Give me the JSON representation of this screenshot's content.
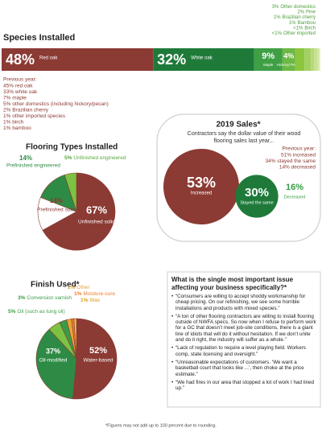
{
  "chart_data": [
    {
      "type": "stacked-bar",
      "title": "Species Installed",
      "categories": [
        "Red oak",
        "White oak",
        "Maple",
        "Hickory/ Pecan",
        "Other domestics",
        "Pine",
        "Brazilian cherry",
        "Bamboo",
        "Birch",
        "Other imported"
      ],
      "values": [
        48,
        32,
        9,
        4,
        3,
        2,
        1,
        1,
        0.5,
        0.5
      ],
      "value_labels": [
        "48%",
        "32%",
        "9%",
        "4%",
        "3%",
        "2%",
        "1%",
        "1%",
        "<1%",
        "<1%"
      ],
      "colors": [
        "#8b3a34",
        "#1f7a3a",
        "#3f9f45",
        "#6cb844",
        "#8cc63f",
        "#a3d063",
        "#b5d97a",
        "#c6e18f",
        "#d2e7a3",
        "#e0efbb"
      ],
      "xlim": [
        0,
        100
      ]
    },
    {
      "type": "pie",
      "title": "Flooring Types Installed",
      "categories": [
        "Unfinished solid",
        "Prefinished solid",
        "Prefinished engineered",
        "Unfinished engineered"
      ],
      "values": [
        67,
        14,
        14,
        5
      ],
      "value_labels": [
        "67%",
        "14%",
        "14%",
        "5%"
      ],
      "colors": [
        "#8b3a34",
        "#ffffff",
        "#2e8b45",
        "#7dc242"
      ]
    },
    {
      "type": "bubble",
      "title": "2019 Sales*",
      "subtitle": "Contractors say the dollar value of their wood flooring sales last year...",
      "categories": [
        "Increased",
        "Stayed the same",
        "Decreased"
      ],
      "values": [
        53,
        30,
        16
      ],
      "value_labels": [
        "53%",
        "30%",
        "16%"
      ],
      "colors": [
        "#8b3a34",
        "#1f7a3a",
        "#ffffff"
      ]
    },
    {
      "type": "pie",
      "title": "Finish Used*",
      "categories": [
        "Water-based",
        "Oil-modified",
        "Oil (such as tung oil)",
        "Conversion varnish",
        "Other",
        "Moisture-cure",
        "Wax"
      ],
      "values": [
        52,
        37,
        5,
        3,
        2,
        1,
        1
      ],
      "value_labels": [
        "52%",
        "37%",
        "5%",
        "3%",
        "2%",
        "1%",
        "1%"
      ],
      "colors": [
        "#8b3a34",
        "#2e8b45",
        "#7dc242",
        "#3a9b47",
        "#e8a33a",
        "#f07d2a",
        "#f3c34a"
      ]
    }
  ],
  "species_previous_year": {
    "title": "Previous year:",
    "items": [
      "45% red oak",
      "33% white oak",
      "7% maple",
      "5% other domestics (including hickory/pecan)",
      "2% Brazilian cherry",
      "1% other imported species",
      "1% birch",
      "1% bamboo"
    ]
  },
  "sales_previous_year": {
    "title": "Previous year:",
    "items": [
      "51% increased",
      "34% stayed the same",
      "14% decreased"
    ]
  },
  "issue": {
    "question": "What is the single most important issue affecting your business specifically?*",
    "responses": [
      "“Consumers are willing to accept shoddy workmanship for cheap pricing. On our refinishing, we see some horrible installations and products with mixed species.”",
      "“A ton of other flooring contractors are willing to install flooring outside of NWFA specs. So now when I refuse to perform work for a GC that doesn’t meet job-site conditions, there is a giant line of idiots that will do it without hesitation. If we don’t unite and do it right, the industry will suffer as a whole.”",
      "“Lack of regulation to require a level playing field. Workers comp, state licensing and oversight.”",
      "“Unreasonable expectations of customers. ‘We want a basketball court that looks like ...’, then choke at the price estimate.”",
      "“We had fires in our area that stopped a lot of work I had lined up.”"
    ]
  },
  "footnote": "*Figures may not add up to 100 percent due to rounding."
}
